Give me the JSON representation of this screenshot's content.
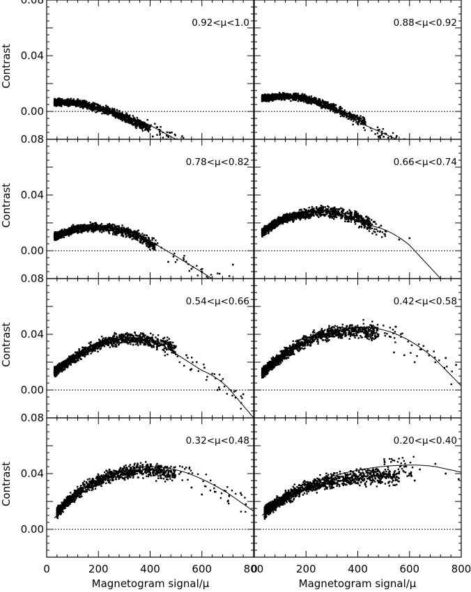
{
  "figure": {
    "xlabel": "Magnetogram signal/μ",
    "ylabel": "Contrast"
  },
  "chart_data": [
    {
      "type": "scatter",
      "annotation": "0.92<μ<1.0",
      "xlabel": "",
      "ylabel": "Contrast",
      "xlim": [
        0,
        800
      ],
      "ylim": [
        -0.02,
        0.08
      ],
      "xticks": [],
      "yticks": [
        0.0,
        0.04,
        0.08
      ],
      "ytick_labels": [
        "0.00",
        "0.04",
        "0.08"
      ],
      "reference_line": 0.0,
      "fit_curve": [
        [
          30,
          0.007
        ],
        [
          150,
          0.005
        ],
        [
          300,
          -0.003
        ],
        [
          400,
          -0.01
        ],
        [
          500,
          -0.02
        ]
      ],
      "scatter_cloud": {
        "x_range": [
          30,
          400
        ],
        "envelope": [
          [
            30,
            0.0065
          ],
          [
            100,
            0.0065
          ],
          [
            150,
            0.005
          ],
          [
            200,
            0.002
          ],
          [
            260,
            -0.001
          ],
          [
            320,
            -0.006
          ],
          [
            400,
            -0.012
          ]
        ],
        "spread": 0.003,
        "outliers": [
          [
            410,
            -0.018
          ],
          [
            470,
            -0.018
          ],
          [
            540,
            -0.022
          ]
        ]
      }
    },
    {
      "type": "scatter",
      "annotation": "0.88<μ<0.92",
      "xlabel": "",
      "ylabel": "",
      "xlim": [
        0,
        800
      ],
      "ylim": [
        -0.02,
        0.08
      ],
      "xticks": [],
      "yticks": [],
      "reference_line": 0.0,
      "fit_curve": [
        [
          30,
          0.01
        ],
        [
          150,
          0.01
        ],
        [
          300,
          0.002
        ],
        [
          430,
          -0.01
        ],
        [
          550,
          -0.02
        ]
      ],
      "scatter_cloud": {
        "x_range": [
          30,
          430
        ],
        "envelope": [
          [
            30,
            0.0095
          ],
          [
            100,
            0.011
          ],
          [
            160,
            0.0105
          ],
          [
            220,
            0.008
          ],
          [
            300,
            0.003
          ],
          [
            380,
            -0.004
          ],
          [
            430,
            -0.008
          ]
        ],
        "spread": 0.003,
        "outliers": [
          [
            480,
            -0.018
          ],
          [
            510,
            -0.021
          ],
          [
            580,
            -0.02
          ]
        ]
      }
    },
    {
      "type": "scatter",
      "annotation": "0.78<μ<0.82",
      "xlabel": "",
      "ylabel": "Contrast",
      "xlim": [
        0,
        800
      ],
      "ylim": [
        -0.02,
        0.08
      ],
      "xticks": [],
      "yticks": [
        0.0,
        0.04,
        0.08
      ],
      "ytick_labels": [
        "0.00",
        "0.04",
        "0.08"
      ],
      "reference_line": 0.0,
      "fit_curve": [
        [
          30,
          0.011
        ],
        [
          200,
          0.018
        ],
        [
          350,
          0.012
        ],
        [
          500,
          -0.004
        ],
        [
          640,
          -0.02
        ]
      ],
      "scatter_cloud": {
        "x_range": [
          30,
          420
        ],
        "envelope": [
          [
            30,
            0.01
          ],
          [
            100,
            0.015
          ],
          [
            170,
            0.017
          ],
          [
            240,
            0.016
          ],
          [
            320,
            0.013
          ],
          [
            380,
            0.008
          ],
          [
            420,
            0.003
          ]
        ],
        "spread": 0.0035,
        "outliers": [
          [
            470,
            -0.008
          ],
          [
            560,
            -0.013
          ],
          [
            720,
            -0.01
          ]
        ]
      }
    },
    {
      "type": "scatter",
      "annotation": "0.66<μ<0.74",
      "xlabel": "",
      "ylabel": "",
      "xlim": [
        0,
        800
      ],
      "ylim": [
        -0.02,
        0.08
      ],
      "xticks": [],
      "yticks": [],
      "reference_line": 0.0,
      "fit_curve": [
        [
          30,
          0.014
        ],
        [
          200,
          0.028
        ],
        [
          300,
          0.028
        ],
        [
          450,
          0.018
        ],
        [
          600,
          0.004
        ],
        [
          720,
          -0.02
        ]
      ],
      "scatter_cloud": {
        "x_range": [
          30,
          450
        ],
        "envelope": [
          [
            30,
            0.013
          ],
          [
            100,
            0.022
          ],
          [
            180,
            0.026
          ],
          [
            260,
            0.028
          ],
          [
            330,
            0.027
          ],
          [
            400,
            0.023
          ],
          [
            450,
            0.019
          ]
        ],
        "spread": 0.004,
        "outliers": [
          [
            560,
            0.008
          ],
          [
            600,
            0.009
          ],
          [
            510,
            0.014
          ],
          [
            490,
            0.018
          ]
        ]
      }
    },
    {
      "type": "scatter",
      "annotation": "0.54<μ<0.66",
      "xlabel": "",
      "ylabel": "Contrast",
      "xlim": [
        0,
        800
      ],
      "ylim": [
        -0.02,
        0.08
      ],
      "xticks": [],
      "yticks": [
        0.0,
        0.04,
        0.08
      ],
      "ytick_labels": [
        "0.00",
        "0.04",
        "0.08"
      ],
      "reference_line": 0.0,
      "fit_curve": [
        [
          30,
          0.012
        ],
        [
          150,
          0.03
        ],
        [
          300,
          0.038
        ],
        [
          450,
          0.032
        ],
        [
          600,
          0.014
        ],
        [
          700,
          0.002
        ],
        [
          800,
          -0.02
        ]
      ],
      "scatter_cloud": {
        "x_range": [
          30,
          500
        ],
        "envelope": [
          [
            30,
            0.013
          ],
          [
            80,
            0.02
          ],
          [
            150,
            0.028
          ],
          [
            220,
            0.034
          ],
          [
            300,
            0.037
          ],
          [
            380,
            0.036
          ],
          [
            450,
            0.033
          ],
          [
            500,
            0.03
          ]
        ],
        "spread": 0.0045,
        "outliers": [
          [
            540,
            0.025
          ],
          [
            580,
            0.02
          ],
          [
            610,
            0.016
          ],
          [
            660,
            0.0
          ],
          [
            760,
            -0.003
          ]
        ]
      }
    },
    {
      "type": "scatter",
      "annotation": "0.42<μ<0.58",
      "xlabel": "",
      "ylabel": "",
      "xlim": [
        0,
        800
      ],
      "ylim": [
        -0.02,
        0.08
      ],
      "xticks": [],
      "yticks": [],
      "reference_line": 0.0,
      "fit_curve": [
        [
          30,
          0.01
        ],
        [
          150,
          0.03
        ],
        [
          300,
          0.042
        ],
        [
          420,
          0.045
        ],
        [
          550,
          0.04
        ],
        [
          700,
          0.022
        ],
        [
          800,
          0.003
        ]
      ],
      "scatter_cloud": {
        "x_range": [
          30,
          480
        ],
        "envelope": [
          [
            30,
            0.012
          ],
          [
            80,
            0.02
          ],
          [
            150,
            0.03
          ],
          [
            220,
            0.037
          ],
          [
            300,
            0.041
          ],
          [
            380,
            0.043
          ],
          [
            450,
            0.042
          ],
          [
            480,
            0.041
          ]
        ],
        "spread": 0.005,
        "outliers": [
          [
            540,
            0.027
          ],
          [
            580,
            0.025
          ],
          [
            620,
            0.02
          ],
          [
            700,
            0.02
          ],
          [
            740,
            0.023
          ],
          [
            780,
            0.018
          ]
        ]
      }
    },
    {
      "type": "scatter",
      "annotation": "0.32<μ<0.48",
      "xlabel": "Magnetogram signal/μ",
      "ylabel": "Contrast",
      "xlim": [
        0,
        800
      ],
      "ylim": [
        -0.02,
        0.08
      ],
      "xticks": [
        0,
        200,
        400,
        600,
        800
      ],
      "xtick_labels": [
        "0",
        "200",
        "400",
        "600",
        "800"
      ],
      "yticks": [
        0.0,
        0.04,
        0.08
      ],
      "ytick_labels": [
        "0.00",
        "0.04",
        "0.08"
      ],
      "reference_line": 0.0,
      "fit_curve": [
        [
          30,
          0.008
        ],
        [
          150,
          0.028
        ],
        [
          250,
          0.038
        ],
        [
          400,
          0.045
        ],
        [
          550,
          0.04
        ],
        [
          700,
          0.026
        ],
        [
          800,
          0.013
        ]
      ],
      "scatter_cloud": {
        "x_range": [
          40,
          500
        ],
        "envelope": [
          [
            40,
            0.012
          ],
          [
            80,
            0.02
          ],
          [
            150,
            0.03
          ],
          [
            220,
            0.037
          ],
          [
            300,
            0.041
          ],
          [
            380,
            0.043
          ],
          [
            450,
            0.041
          ],
          [
            500,
            0.04
          ]
        ],
        "spread": 0.005,
        "outliers": [
          [
            560,
            0.03
          ],
          [
            600,
            0.025
          ],
          [
            650,
            0.027
          ],
          [
            700,
            0.02
          ],
          [
            750,
            0.026
          ],
          [
            770,
            0.018
          ]
        ]
      }
    },
    {
      "type": "scatter",
      "annotation": "0.20<μ<0.40",
      "xlabel": "Magnetogram signal/μ",
      "ylabel": "",
      "xlim": [
        0,
        800
      ],
      "ylim": [
        -0.02,
        0.08
      ],
      "xticks": [
        0,
        200,
        400,
        600,
        800
      ],
      "xtick_labels": [
        "0",
        "200",
        "400",
        "600",
        "800"
      ],
      "yticks": [],
      "reference_line": 0.0,
      "fit_curve": [
        [
          30,
          0.01
        ],
        [
          150,
          0.025
        ],
        [
          300,
          0.038
        ],
        [
          450,
          0.044
        ],
        [
          580,
          0.046
        ],
        [
          700,
          0.045
        ],
        [
          800,
          0.041
        ]
      ],
      "scatter_cloud": {
        "x_range": [
          40,
          560
        ],
        "envelope": [
          [
            40,
            0.012
          ],
          [
            80,
            0.018
          ],
          [
            150,
            0.026
          ],
          [
            220,
            0.031
          ],
          [
            300,
            0.035
          ],
          [
            380,
            0.037
          ],
          [
            460,
            0.038
          ],
          [
            560,
            0.038
          ]
        ],
        "spread": 0.0055,
        "outliers": [
          [
            600,
            0.04
          ],
          [
            640,
            0.043
          ],
          [
            700,
            0.047
          ],
          [
            740,
            0.04
          ],
          [
            790,
            0.036
          ],
          [
            620,
            0.035
          ]
        ]
      }
    }
  ]
}
